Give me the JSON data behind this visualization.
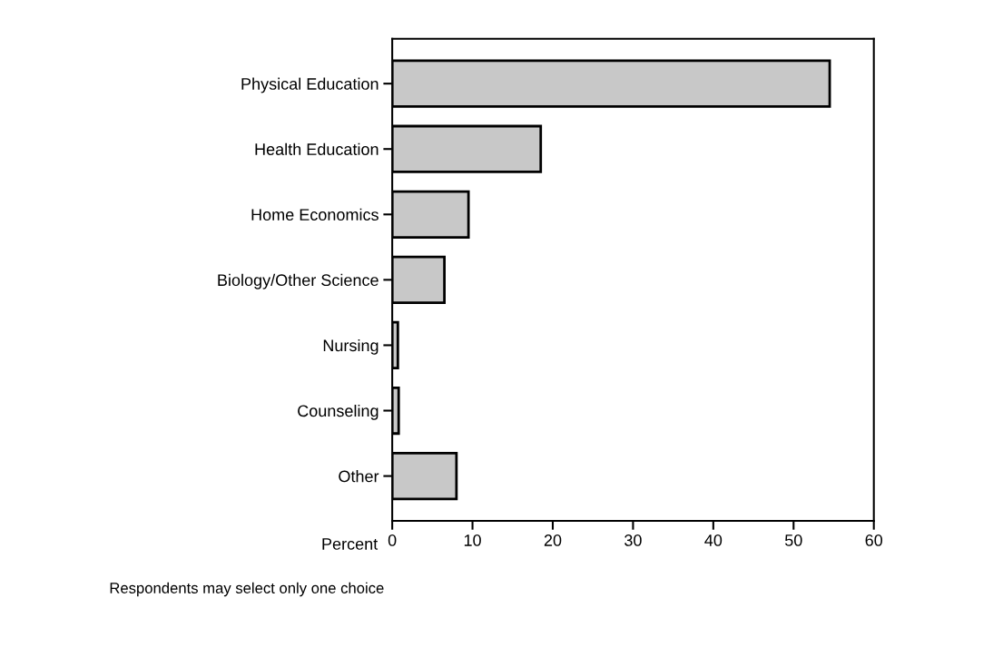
{
  "chart_data": {
    "type": "bar",
    "orientation": "horizontal",
    "xlabel": "Percent",
    "categories": [
      "Physical Education",
      "Health Education",
      "Home Economics",
      "Biology/Other Science",
      "Nursing",
      "Counseling",
      "Other"
    ],
    "values": [
      54.5,
      18.5,
      9.5,
      6.5,
      0.7,
      0.8,
      8
    ],
    "color": "#c8c8c8",
    "xlim": [
      0,
      60
    ],
    "xticks": [
      0,
      10,
      20,
      30,
      40,
      50,
      60
    ],
    "grid": false,
    "annotations": [
      "Respondents may select only one choice"
    ]
  }
}
